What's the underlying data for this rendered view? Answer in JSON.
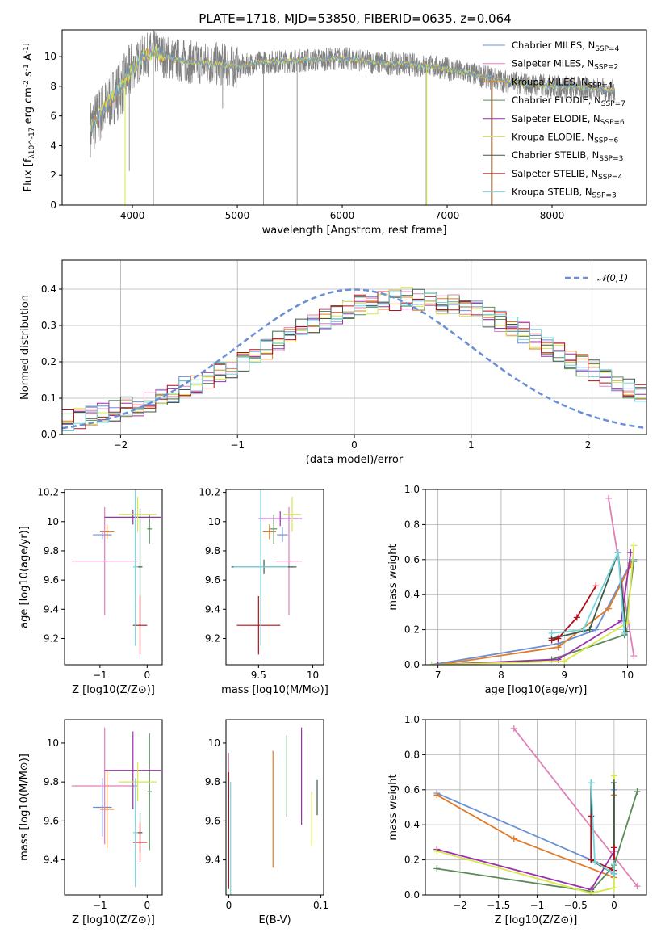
{
  "figure_title": "PLATE=1718, MJD=53850, FIBERID=0635, z=0.064",
  "colors": [
    "#6a8fd6",
    "#e080b8",
    "#e07b28",
    "#5a8a5a",
    "#9c2fae",
    "#d6e84a",
    "#3c5a4c",
    "#b2101a",
    "#74d6de"
  ],
  "chart_data": [
    {
      "id": "spectrum",
      "type": "line",
      "title": "PLATE=1718, MJD=53850, FIBERID=0635, z=0.064",
      "xlabel": "wavelength [Angstrom, rest frame]",
      "ylabel": "Flux [f_λ10^-17 erg cm^-2 s^-1 A^-1]",
      "xlim": [
        3330,
        8900
      ],
      "ylim": [
        0,
        11.8
      ],
      "xticks": [
        4000,
        5000,
        6000,
        7000,
        8000
      ],
      "yticks": [
        0,
        2,
        4,
        6,
        8,
        10
      ],
      "legend_position": "right",
      "legend": [
        "Chabrier MILES, N_SSP=4",
        "Salpeter MILES, N_SSP=2",
        "Kroupa MILES, N_SSP=4",
        "Chabrier ELODIE, N_SSP=7",
        "Salpeter ELODIE, N_SSP=6",
        "Kroupa ELODIE, N_SSP=6",
        "Chabrier STELIB, N_SSP=3",
        "Salpeter STELIB, N_SSP=4",
        "Kroupa STELIB, N_SSP=3"
      ],
      "model_curve": {
        "x": [
          3600,
          3700,
          3800,
          3900,
          4000,
          4100,
          4200,
          4400,
          4600,
          4800,
          5000,
          5200,
          5500,
          5800,
          6000,
          6300,
          6600,
          6900,
          7200,
          7500,
          7700,
          8000,
          8300,
          8600
        ],
        "y": [
          5.2,
          6.2,
          7.2,
          8.0,
          9.2,
          10.0,
          10.3,
          9.8,
          9.6,
          9.5,
          9.3,
          9.6,
          9.7,
          9.8,
          9.9,
          9.6,
          9.5,
          9.3,
          8.9,
          8.4,
          8.2,
          8.0,
          7.9,
          7.7
        ]
      },
      "observed_dips": [
        {
          "x": 3930,
          "y": 0
        },
        {
          "x": 3970,
          "y": 2.3
        },
        {
          "x": 4200,
          "y": 0
        },
        {
          "x": 4860,
          "y": 6.5
        },
        {
          "x": 5250,
          "y": 0
        },
        {
          "x": 5570,
          "y": 0
        },
        {
          "x": 6800,
          "y": 0
        },
        {
          "x": 7420,
          "y": 0
        }
      ]
    },
    {
      "id": "residuals",
      "type": "histogram",
      "xlabel": "(data-model)/error",
      "ylabel": "Normed distribution",
      "xlim": [
        -2.5,
        2.5
      ],
      "ylim": [
        0,
        0.48
      ],
      "xticks": [
        -2,
        -1,
        0,
        1,
        2
      ],
      "yticks": [
        0.0,
        0.1,
        0.2,
        0.3,
        0.4
      ],
      "grid": true,
      "legend_position": "top-right",
      "legend": [
        "𝒩(0,1)"
      ],
      "bin_width": 0.1,
      "bins_start": -2.5,
      "reference_values": [
        0.04,
        0.045,
        0.055,
        0.06,
        0.065,
        0.075,
        0.08,
        0.09,
        0.1,
        0.11,
        0.13,
        0.14,
        0.155,
        0.17,
        0.185,
        0.2,
        0.22,
        0.235,
        0.255,
        0.275,
        0.29,
        0.305,
        0.32,
        0.33,
        0.345,
        0.355,
        0.36,
        0.365,
        0.37,
        0.375,
        0.37,
        0.365,
        0.36,
        0.355,
        0.35,
        0.34,
        0.325,
        0.31,
        0.295,
        0.28,
        0.26,
        0.245,
        0.225,
        0.21,
        0.19,
        0.175,
        0.16,
        0.145,
        0.13,
        0.12
      ],
      "reference_tail": [
        0.11,
        0.1,
        0.09,
        0.08,
        0.075,
        0.07,
        0.065,
        0.06,
        0.055,
        0.05
      ]
    },
    {
      "id": "age-vs-Z",
      "type": "scatter",
      "xlabel": "Z [log10(Z/Z⊙)]",
      "ylabel": "age [log10(age/yr)]",
      "xlim": [
        -1.75,
        0.32
      ],
      "ylim": [
        9.02,
        10.22
      ],
      "xticks": [
        -1,
        0
      ],
      "yticks": [
        9.2,
        9.4,
        9.6,
        9.8,
        10.0,
        10.2
      ],
      "points": [
        {
          "x": -0.95,
          "y": 9.91,
          "xerr": 0.2,
          "yerr": 0.03
        },
        {
          "x": -0.9,
          "y": 9.73,
          "xerr": 0.7,
          "yerr": 0.37
        },
        {
          "x": -0.85,
          "y": 9.93,
          "xerr": 0.15,
          "yerr": 0.05
        },
        {
          "x": 0.05,
          "y": 9.95,
          "xerr": 0.05,
          "yerr": 0.1
        },
        {
          "x": -0.3,
          "y": 10.03,
          "xerr": 0.6,
          "yerr": 0.05
        },
        {
          "x": -0.2,
          "y": 10.05,
          "xerr": 0.4,
          "yerr": 0.12
        },
        {
          "x": -0.15,
          "y": 9.69,
          "xerr": 0.05,
          "yerr": 0.4
        },
        {
          "x": -0.15,
          "y": 9.29,
          "xerr": 0.15,
          "yerr": 0.2
        },
        {
          "x": -0.25,
          "y": 9.69,
          "xerr": 0.05,
          "yerr": 0.54
        }
      ]
    },
    {
      "id": "age-vs-mass",
      "type": "scatter",
      "xlabel": "mass [log10(M/M⊙)]",
      "ylabel": "",
      "xlim": [
        9.2,
        10.1
      ],
      "ylim": [
        9.02,
        10.22
      ],
      "xticks": [
        9.5,
        10.0
      ],
      "yticks": [
        9.2,
        9.4,
        9.6,
        9.8,
        10.0,
        10.2
      ],
      "points": [
        {
          "x": 9.72,
          "y": 9.91,
          "xerr": 0.05,
          "yerr": 0.05
        },
        {
          "x": 9.78,
          "y": 9.73,
          "xerr": 0.12,
          "yerr": 0.37
        },
        {
          "x": 9.6,
          "y": 9.93,
          "xerr": 0.06,
          "yerr": 0.05
        },
        {
          "x": 9.64,
          "y": 9.95,
          "xerr": 0.03,
          "yerr": 0.1
        },
        {
          "x": 9.7,
          "y": 10.02,
          "xerr": 0.2,
          "yerr": 0.05
        },
        {
          "x": 9.81,
          "y": 10.05,
          "xerr": 0.08,
          "yerr": 0.12
        },
        {
          "x": 9.55,
          "y": 9.69,
          "xerr": 0.3,
          "yerr": 0.05
        },
        {
          "x": 9.5,
          "y": 9.29,
          "xerr": 0.2,
          "yerr": 0.2
        },
        {
          "x": 9.52,
          "y": 9.69,
          "xerr": 0.25,
          "yerr": 0.54
        }
      ]
    },
    {
      "id": "massweight-vs-age",
      "type": "line",
      "xlabel": "age [log10(age/yr)]",
      "ylabel": "mass weight",
      "xlim": [
        6.8,
        10.3
      ],
      "ylim": [
        0,
        1
      ],
      "xticks": [
        7,
        8,
        9,
        10
      ],
      "yticks": [
        0.0,
        0.2,
        0.4,
        0.6,
        0.8,
        1.0
      ],
      "grid": true,
      "series": [
        {
          "x": [
            6.9,
            8.9,
            9.5,
            10.05,
            10.1
          ],
          "y": [
            0.0,
            0.12,
            0.2,
            0.58,
            0.6
          ]
        },
        {
          "x": [
            9.7,
            10.1
          ],
          "y": [
            0.95,
            0.05
          ]
        },
        {
          "x": [
            7.0,
            8.9,
            9.7,
            10.05
          ],
          "y": [
            0.0,
            0.1,
            0.32,
            0.57
          ]
        },
        {
          "x": [
            7.0,
            8.8,
            9.95,
            10.1
          ],
          "y": [
            0.0,
            0.03,
            0.17,
            0.59
          ]
        },
        {
          "x": [
            7.0,
            8.9,
            9.9,
            10.05
          ],
          "y": [
            0.0,
            0.03,
            0.25,
            0.64
          ]
        },
        {
          "x": [
            6.9,
            9.0,
            10.0,
            10.1
          ],
          "y": [
            0.0,
            0.02,
            0.24,
            0.68
          ]
        },
        {
          "x": [
            8.8,
            9.4,
            9.85,
            9.98
          ],
          "y": [
            0.15,
            0.2,
            0.64,
            0.19
          ]
        },
        {
          "x": [
            8.8,
            8.9,
            9.2,
            9.5
          ],
          "y": [
            0.14,
            0.15,
            0.27,
            0.45
          ]
        },
        {
          "x": [
            8.8,
            9.3,
            9.85,
            9.95
          ],
          "y": [
            0.18,
            0.2,
            0.64,
            0.18
          ]
        }
      ]
    },
    {
      "id": "mass-vs-Z",
      "type": "scatter",
      "xlabel": "Z [log10(Z/Z⊙)]",
      "ylabel": "mass [log10(M/M⊙)]",
      "xlim": [
        -1.75,
        0.32
      ],
      "ylim": [
        9.22,
        10.12
      ],
      "xticks": [
        -1,
        0
      ],
      "yticks": [
        9.4,
        9.6,
        9.8,
        10.0
      ],
      "points": [
        {
          "x": -0.95,
          "y": 9.67,
          "xerr": 0.2,
          "yerr": 0.15
        },
        {
          "x": -0.9,
          "y": 9.78,
          "xerr": 0.7,
          "yerr": 0.3
        },
        {
          "x": -0.85,
          "y": 9.66,
          "xerr": 0.15,
          "yerr": 0.2
        },
        {
          "x": 0.05,
          "y": 9.75,
          "xerr": 0.05,
          "yerr": 0.3
        },
        {
          "x": -0.3,
          "y": 9.86,
          "xerr": 0.6,
          "yerr": 0.2
        },
        {
          "x": -0.2,
          "y": 9.8,
          "xerr": 0.4,
          "yerr": 0.1
        },
        {
          "x": -0.15,
          "y": 9.54,
          "xerr": 0.05,
          "yerr": 0.1
        },
        {
          "x": -0.15,
          "y": 9.49,
          "xerr": 0.15,
          "yerr": 0.1
        },
        {
          "x": -0.25,
          "y": 9.54,
          "xerr": 0.05,
          "yerr": 0.28
        }
      ]
    },
    {
      "id": "mass-vs-EBV",
      "type": "scatter",
      "xlabel": "E(B-V)",
      "ylabel": "",
      "xlim": [
        -0.003,
        0.103
      ],
      "ylim": [
        9.22,
        10.12
      ],
      "xticks": [
        0.0,
        0.1
      ],
      "yticks": [
        9.4,
        9.6,
        9.8,
        10.0
      ],
      "points": [
        {
          "x": 0.0,
          "y": 9.78,
          "xerr": 0,
          "yerr": 0.06
        },
        {
          "x": 0.0,
          "y": 9.6,
          "xerr": 0,
          "yerr": 0.35
        },
        {
          "x": 0.048,
          "y": 9.66,
          "xerr": 0,
          "yerr": 0.3
        },
        {
          "x": 0.063,
          "y": 9.83,
          "xerr": 0,
          "yerr": 0.21
        },
        {
          "x": 0.079,
          "y": 9.83,
          "xerr": 0,
          "yerr": 0.25
        },
        {
          "x": 0.09,
          "y": 9.61,
          "xerr": 0,
          "yerr": 0.14
        },
        {
          "x": 0.096,
          "y": 9.72,
          "xerr": 0,
          "yerr": 0.09
        },
        {
          "x": 0.0,
          "y": 9.55,
          "xerr": 0,
          "yerr": 0.3
        },
        {
          "x": 0.002,
          "y": 9.5,
          "xerr": 0,
          "yerr": 0.3
        }
      ]
    },
    {
      "id": "massweight-vs-Z",
      "type": "line",
      "xlabel": "Z [log10(Z/Z⊙)]",
      "ylabel": "mass weight",
      "xlim": [
        -2.45,
        0.42
      ],
      "ylim": [
        0,
        1
      ],
      "xticks": [
        -2.0,
        -1.5,
        -1.0,
        -0.5,
        0.0
      ],
      "yticks": [
        0.0,
        0.2,
        0.4,
        0.6,
        0.8,
        1.0
      ],
      "grid": true,
      "series": [
        {
          "x": [
            -2.3,
            -0.3,
            0.0,
            0.0
          ],
          "y": [
            0.58,
            0.2,
            0.12,
            0.6
          ]
        },
        {
          "x": [
            -1.3,
            0.3
          ],
          "y": [
            0.95,
            0.05
          ]
        },
        {
          "x": [
            -2.3,
            -1.3,
            0.0,
            0.0
          ],
          "y": [
            0.57,
            0.32,
            0.1,
            0.57
          ]
        },
        {
          "x": [
            -2.3,
            -0.3,
            0.0,
            0.3
          ],
          "y": [
            0.15,
            0.02,
            0.17,
            0.59
          ]
        },
        {
          "x": [
            -2.3,
            -0.3,
            0.0,
            0.0
          ],
          "y": [
            0.26,
            0.03,
            0.25,
            0.64
          ]
        },
        {
          "x": [
            -2.3,
            -0.3,
            0.0,
            0.0
          ],
          "y": [
            0.25,
            0.01,
            0.04,
            0.68
          ]
        },
        {
          "x": [
            -0.3,
            -0.3,
            0.0,
            0.0
          ],
          "y": [
            0.64,
            0.2,
            0.12,
            0.64
          ]
        },
        {
          "x": [
            -0.3,
            -0.3,
            0.0,
            0.0
          ],
          "y": [
            0.45,
            0.2,
            0.14,
            0.27
          ]
        },
        {
          "x": [
            -0.3,
            -0.25,
            0.0,
            0.0
          ],
          "y": [
            0.64,
            0.19,
            0.12,
            0.18
          ]
        }
      ]
    }
  ]
}
